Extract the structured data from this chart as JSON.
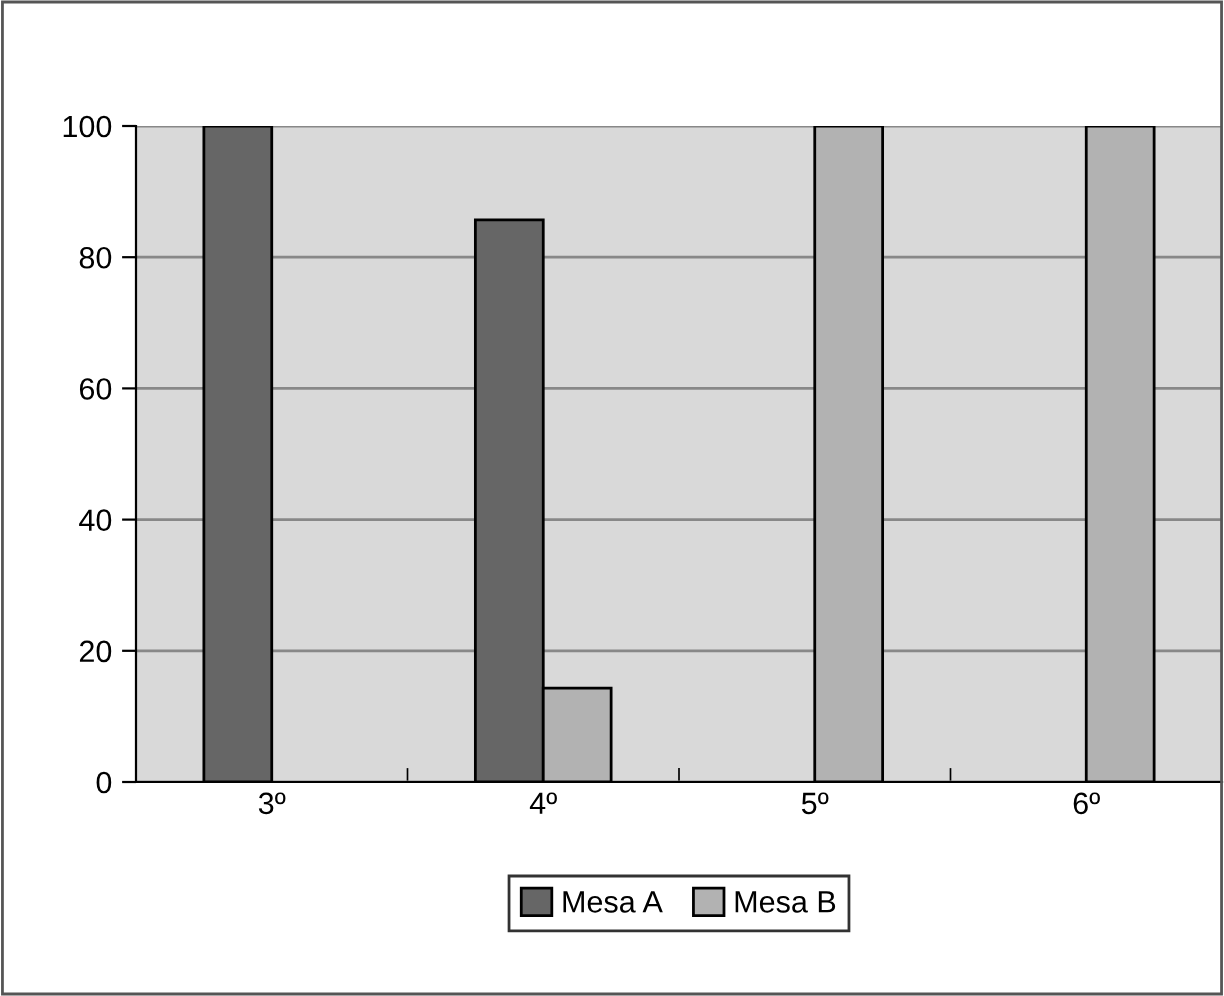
{
  "chart_data": {
    "type": "bar",
    "categories": [
      "3º",
      "4º",
      "5º",
      "6º"
    ],
    "series": [
      {
        "name": "Mesa A",
        "color": "#666666",
        "values": [
          100,
          85.7,
          null,
          null
        ]
      },
      {
        "name": "Mesa B",
        "color": "#b2b2b2",
        "values": [
          null,
          14.3,
          100,
          100
        ]
      }
    ],
    "ylim": [
      0,
      100
    ],
    "yticks": [
      0,
      20,
      40,
      60,
      80,
      100
    ],
    "grid": "y",
    "legend": "bottom"
  }
}
